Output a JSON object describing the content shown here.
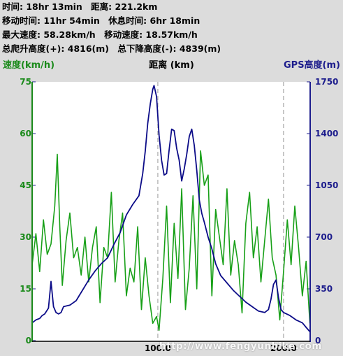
{
  "summary": {
    "time_label": "时间:",
    "time_value": "18hr 13min",
    "distance_label": "距离:",
    "distance_value": "221.2km",
    "moving_time_label": "移动时间:",
    "moving_time_value": "11hr 54min",
    "rest_time_label": "休息时间:",
    "rest_time_value": "6hr 18min",
    "max_speed_label": "最大速度:",
    "max_speed_value": "58.28km/h",
    "moving_speed_label": "移动速度:",
    "moving_speed_value": "18.57km/h",
    "total_ascent_label": "总爬升高度(+):",
    "total_ascent_value": "4816(m)",
    "total_descent_label": "总下降高度(-):",
    "total_descent_value": "4839(m)"
  },
  "watermark": "http://www.fengyunbike.com",
  "colors": {
    "speed": "#1a8a1a",
    "speed_line": "#18a018",
    "elevation": "#1c1c8c",
    "elevation_line": "#0c0c88",
    "plot_bg": "#ffffff",
    "frame": "#1c1c8c",
    "grid": "#aaaaaa"
  },
  "chart_data": {
    "type": "line",
    "title": "",
    "xlabel": "距离 (km)",
    "y1label": "速度(km/h)",
    "y2label": "GPS高度(m)",
    "xlim": [
      0,
      221.2
    ],
    "y1lim": [
      0,
      75
    ],
    "y2lim": [
      0,
      1750
    ],
    "x_ticks": [
      100,
      200
    ],
    "x_tick_labels": [
      "100.0",
      "200.0"
    ],
    "y1_ticks": [
      0,
      15,
      30,
      45,
      60,
      75
    ],
    "y2_ticks": [
      350,
      700,
      1050,
      1400,
      1750
    ],
    "grid": "vertical dashed at x ticks",
    "series": [
      {
        "name": "速度",
        "axis": "left",
        "x": [
          0,
          3,
          6,
          9,
          12,
          15,
          18,
          20,
          22,
          24,
          27,
          30,
          33,
          36,
          39,
          42,
          45,
          48,
          51,
          54,
          57,
          60,
          63,
          66,
          69,
          72,
          75,
          78,
          81,
          84,
          87,
          90,
          93,
          96,
          99,
          101,
          104,
          107,
          110,
          113,
          116,
          119,
          122,
          125,
          128,
          131,
          134,
          137,
          140,
          143,
          146,
          149,
          152,
          155,
          158,
          161,
          164,
          167,
          170,
          173,
          176,
          179,
          182,
          185,
          188,
          191,
          194,
          197,
          200,
          203,
          206,
          209,
          212,
          215,
          218,
          221
        ],
        "values": [
          22,
          31,
          20,
          35,
          25,
          28,
          39,
          54,
          33,
          16,
          29,
          37,
          24,
          27,
          19,
          30,
          17,
          27,
          33,
          11,
          27,
          24,
          43,
          17,
          29,
          37,
          13,
          21,
          17,
          33,
          9,
          24,
          13,
          5,
          7,
          3,
          18,
          39,
          11,
          34,
          18,
          44,
          9,
          21,
          42,
          15,
          55,
          45,
          48,
          13,
          38,
          30,
          22,
          44,
          19,
          29,
          22,
          8,
          34,
          43,
          24,
          33,
          17,
          29,
          41,
          24,
          19,
          6,
          20,
          35,
          22,
          39,
          27,
          13,
          23,
          5
        ]
      },
      {
        "name": "GPS高度",
        "axis": "right",
        "x": [
          0,
          3,
          6,
          8,
          10,
          13,
          15,
          17,
          19,
          21,
          23,
          25,
          30,
          35,
          40,
          45,
          50,
          55,
          60,
          65,
          70,
          75,
          80,
          85,
          88,
          90,
          92,
          94,
          96,
          97,
          99,
          101,
          103,
          105,
          107,
          109,
          111,
          113,
          115,
          117,
          119,
          121,
          123,
          125,
          127,
          129,
          131,
          133,
          135,
          137,
          140,
          143,
          146,
          150,
          155,
          160,
          165,
          170,
          175,
          180,
          185,
          188,
          190,
          192,
          194,
          196,
          198,
          200,
          205,
          210,
          215,
          218,
          221
        ],
        "values": [
          120,
          140,
          150,
          170,
          180,
          220,
          400,
          230,
          190,
          180,
          190,
          230,
          240,
          270,
          340,
          410,
          470,
          520,
          560,
          650,
          730,
          850,
          920,
          980,
          1130,
          1280,
          1470,
          1600,
          1700,
          1725,
          1650,
          1390,
          1220,
          1120,
          1130,
          1290,
          1430,
          1420,
          1300,
          1220,
          1080,
          1160,
          1260,
          1380,
          1430,
          1320,
          1150,
          950,
          860,
          800,
          700,
          620,
          520,
          440,
          390,
          340,
          300,
          260,
          230,
          200,
          190,
          210,
          280,
          380,
          410,
          290,
          210,
          190,
          170,
          140,
          120,
          90,
          60
        ]
      }
    ]
  }
}
